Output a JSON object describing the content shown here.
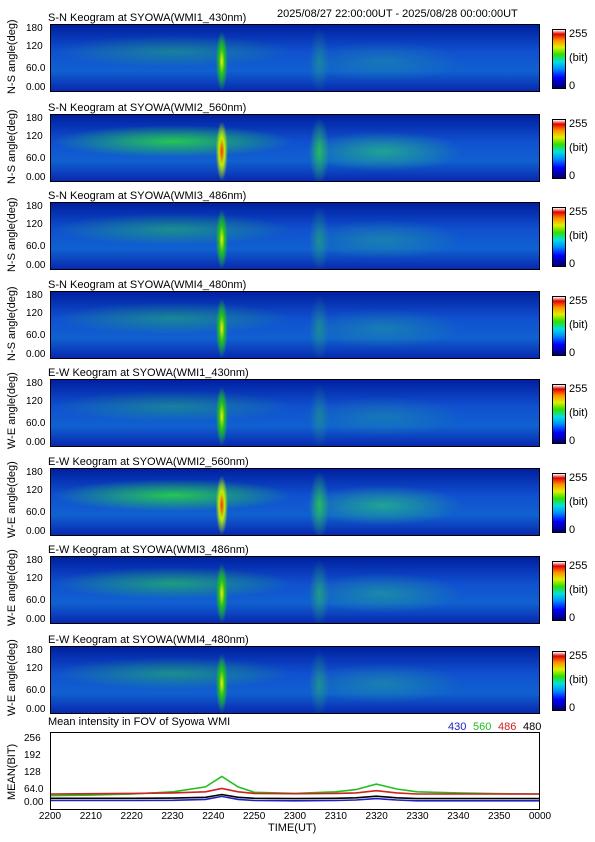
{
  "header": {
    "range": "2025/08/27 22:00:00UT - 2025/08/28 00:00:00UT"
  },
  "panels": [
    {
      "title": "S-N Keogram at SYOWA(WMI1_430nm)",
      "ylabel": "N-S angle(deg)",
      "cmax": "255",
      "cunit": "(bit)",
      "cmin": "0",
      "intensity": 0.35
    },
    {
      "title": "S-N Keogram at SYOWA(WMI2_560nm)",
      "ylabel": "N-S angle(deg)",
      "cmax": "255",
      "cunit": "(bit)",
      "cmin": "0",
      "intensity": 0.85
    },
    {
      "title": "S-N Keogram at SYOWA(WMI3_486nm)",
      "ylabel": "N-S angle(deg)",
      "cmax": "255",
      "cunit": "(bit)",
      "cmin": "0",
      "intensity": 0.45
    },
    {
      "title": "S-N Keogram at SYOWA(WMI4_480nm)",
      "ylabel": "N-S angle(deg)",
      "cmax": "255",
      "cunit": "(bit)",
      "cmin": "0",
      "intensity": 0.4
    },
    {
      "title": "E-W Keogram at SYOWA(WMI1_430nm)",
      "ylabel": "W-E angle(deg)",
      "cmax": "255",
      "cunit": "(bit)",
      "cmin": "0",
      "intensity": 0.35
    },
    {
      "title": "E-W Keogram at SYOWA(WMI2_560nm)",
      "ylabel": "W-E angle(deg)",
      "cmax": "255",
      "cunit": "(bit)",
      "cmin": "0",
      "intensity": 0.85
    },
    {
      "title": "E-W Keogram at SYOWA(WMI3_486nm)",
      "ylabel": "W-E angle(deg)",
      "cmax": "255",
      "cunit": "(bit)",
      "cmin": "0",
      "intensity": 0.55
    },
    {
      "title": "E-W Keogram at SYOWA(WMI4_480nm)",
      "ylabel": "W-E angle(deg)",
      "cmax": "255",
      "cunit": "(bit)",
      "cmin": "0",
      "intensity": 0.45
    }
  ],
  "angle_ticks": [
    "180",
    "120",
    "60.0",
    "0.00"
  ],
  "mean": {
    "title": "Mean intensity in FOV of Syowa WMI",
    "ylabel": "MEAN(BIT)",
    "yticks": [
      "256",
      "192",
      "128",
      "64.0",
      "0.00"
    ],
    "legend": [
      {
        "label": "430",
        "color": "#2020c0"
      },
      {
        "label": "560",
        "color": "#20c020"
      },
      {
        "label": "486",
        "color": "#d02020"
      },
      {
        "label": "480",
        "color": "#000000"
      }
    ]
  },
  "xaxis": {
    "ticks": [
      "2200",
      "2210",
      "2220",
      "2230",
      "2240",
      "2250",
      "2300",
      "2310",
      "2320",
      "2330",
      "2340",
      "2350",
      "0000"
    ],
    "label": "TIME(UT)"
  },
  "chart_data": {
    "type": "line",
    "title": "Mean intensity in FOV of Syowa WMI",
    "xlabel": "TIME(UT)",
    "ylabel": "MEAN(BIT)",
    "ylim": [
      0,
      256
    ],
    "x": [
      0,
      10,
      20,
      30,
      38,
      42,
      46,
      50,
      60,
      70,
      75,
      80,
      85,
      90,
      100,
      110,
      120
    ],
    "series": [
      {
        "name": "430",
        "color": "#2020c0",
        "values": [
          20,
          20,
          20,
          21,
          24,
          35,
          24,
          20,
          19,
          20,
          22,
          27,
          22,
          19,
          19,
          19,
          19
        ]
      },
      {
        "name": "560",
        "color": "#20c020",
        "values": [
          38,
          40,
          44,
          52,
          70,
          108,
          70,
          50,
          46,
          52,
          60,
          80,
          62,
          52,
          48,
          45,
          44
        ]
      },
      {
        "name": "486",
        "color": "#d02020",
        "values": [
          44,
          45,
          46,
          48,
          52,
          64,
          52,
          46,
          45,
          46,
          48,
          56,
          48,
          44,
          44,
          44,
          44
        ]
      },
      {
        "name": "480",
        "color": "#000000",
        "values": [
          28,
          28,
          28,
          29,
          32,
          42,
          32,
          28,
          27,
          28,
          30,
          36,
          30,
          27,
          27,
          27,
          27
        ]
      }
    ]
  }
}
